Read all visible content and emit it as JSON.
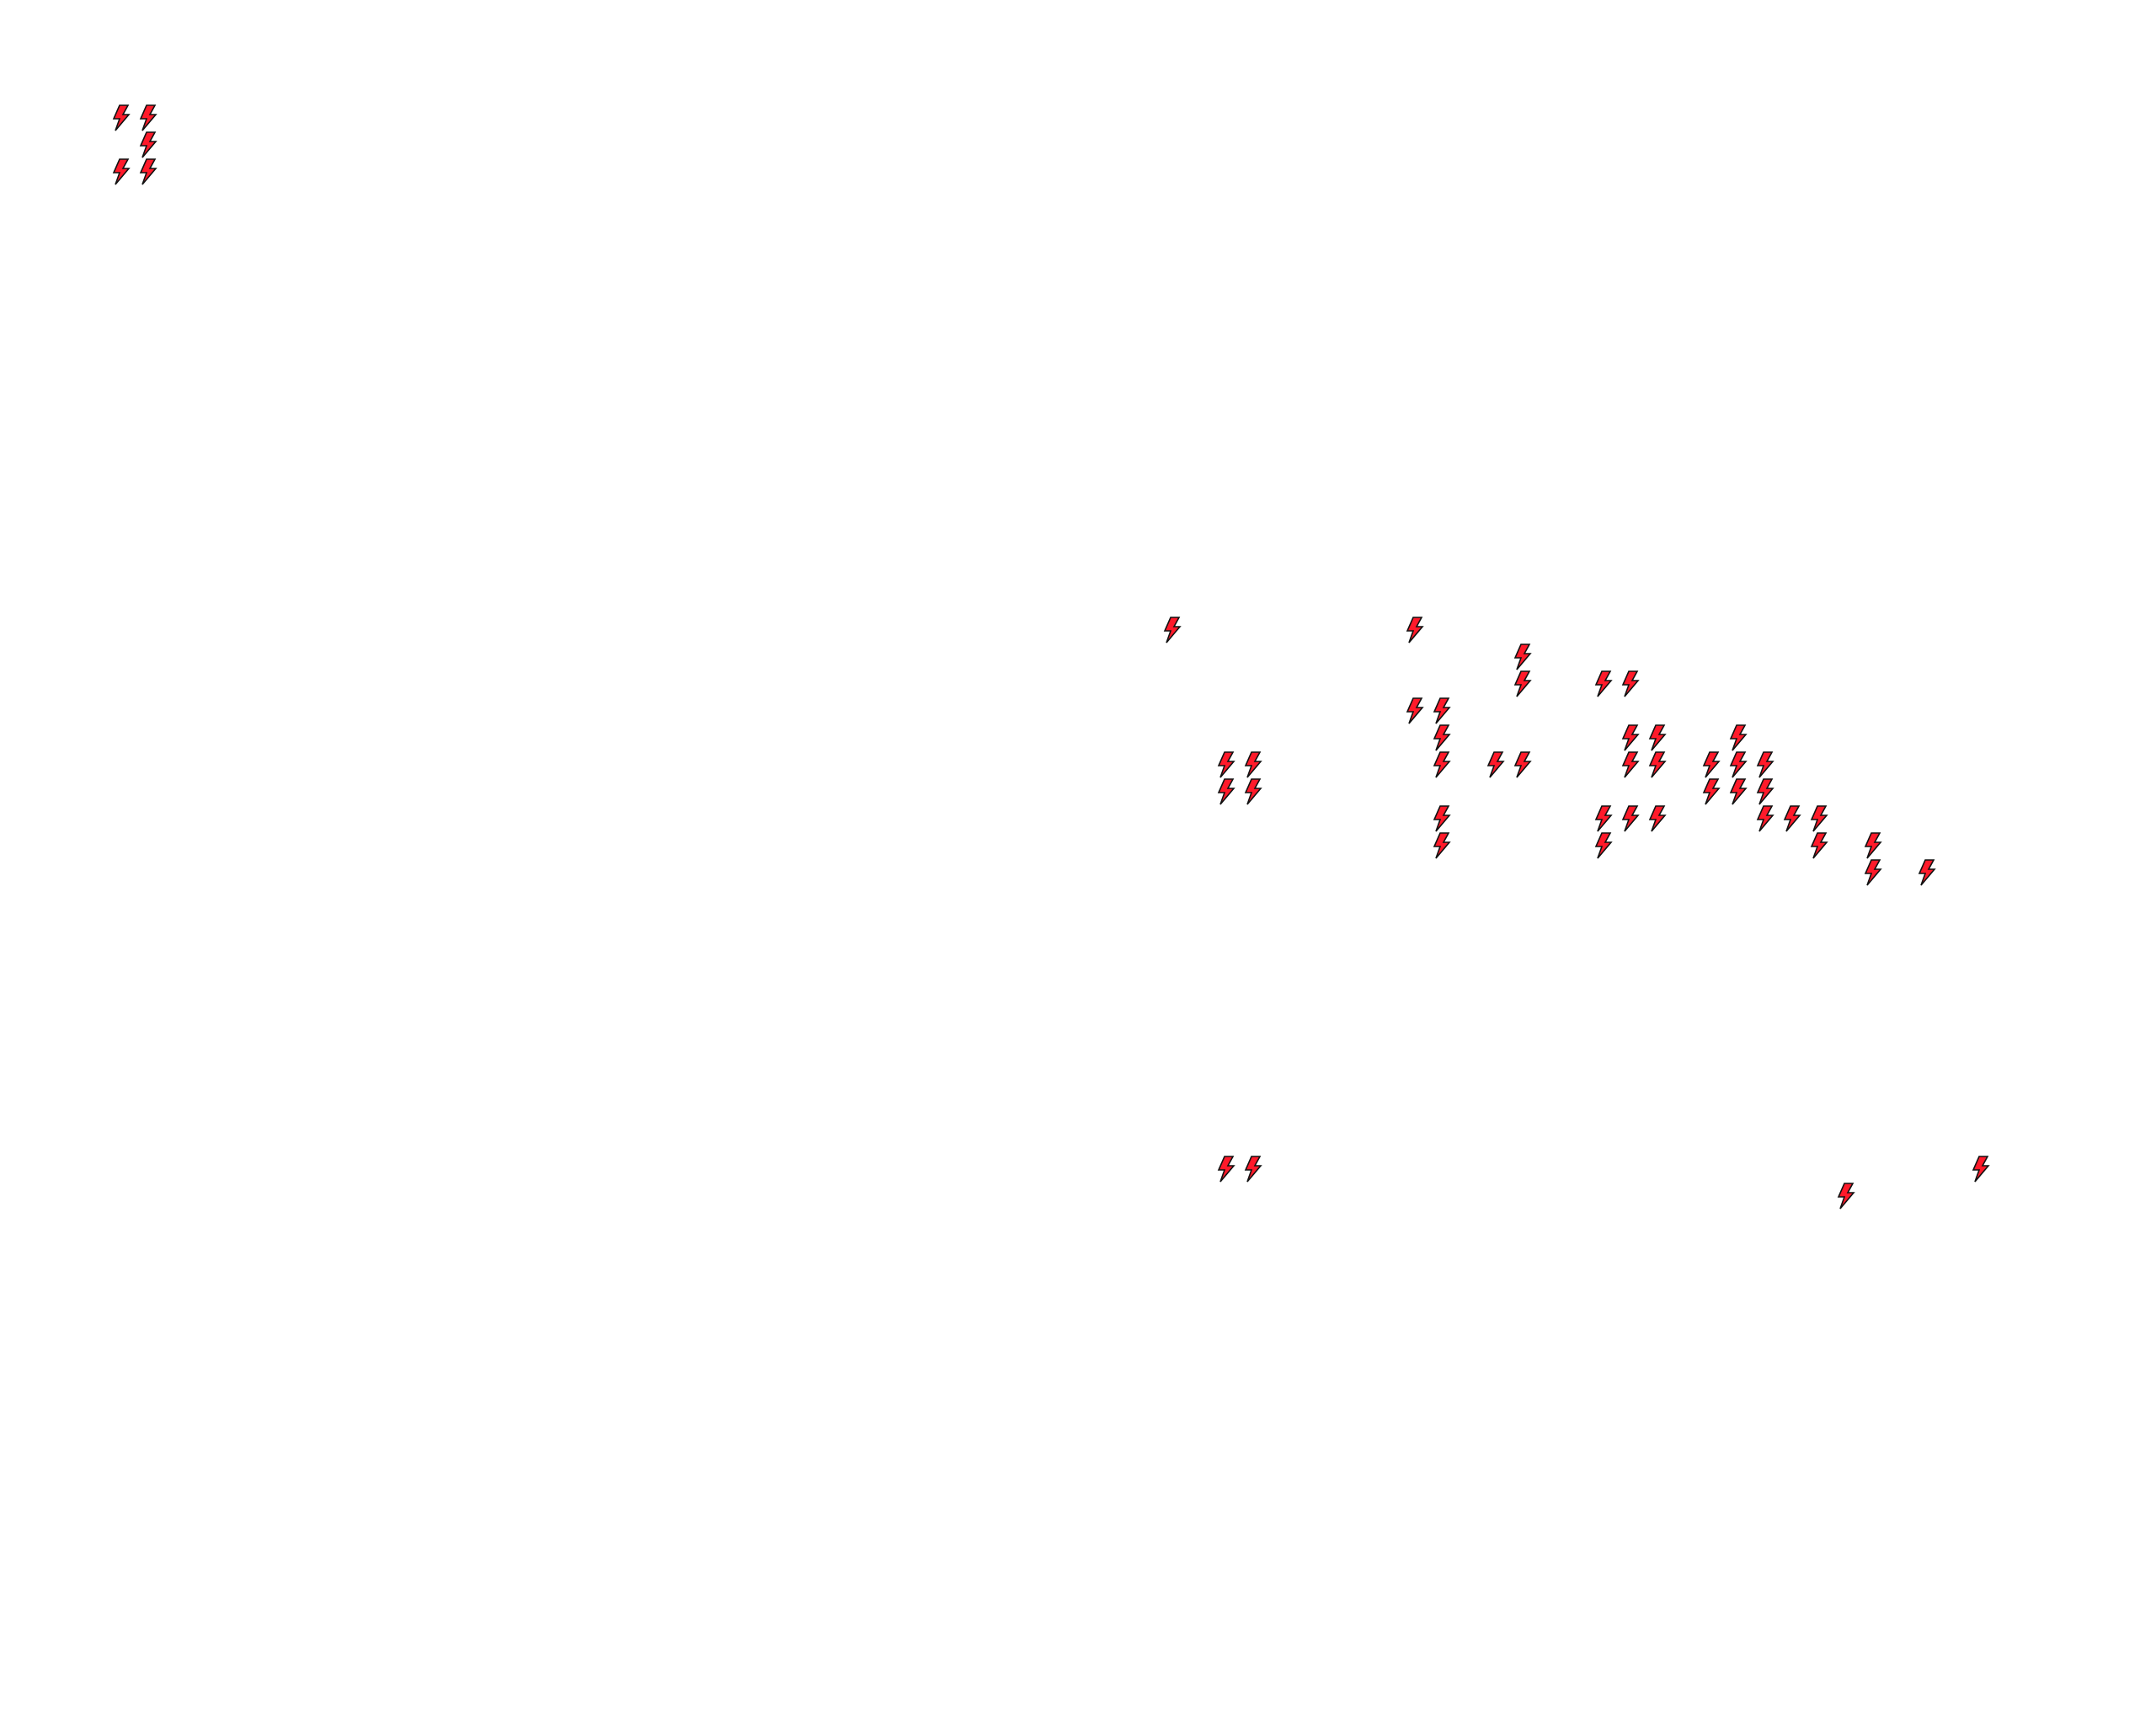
{
  "canvas": {
    "background": "#ffffff"
  },
  "markers": {
    "icon": "lightning-bolt-icon",
    "fill": "#ff1a2a",
    "stroke": "#111111"
  }
}
